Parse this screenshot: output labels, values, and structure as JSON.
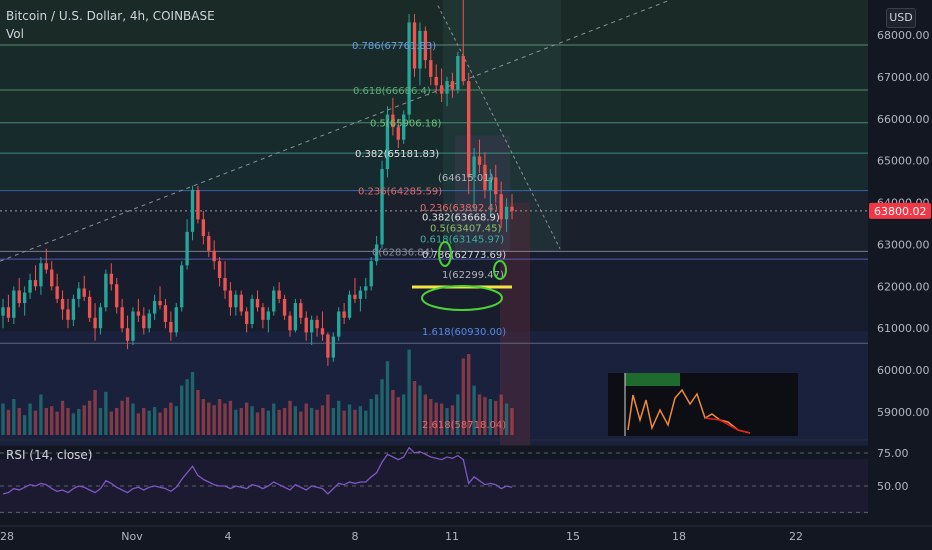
{
  "header": {
    "symbol": "Bitcoin / U.S. Dollar, 4h, COINBASE",
    "indicator": "Vol",
    "currency": "USD"
  },
  "rsi": {
    "label": "RSI (14, close)",
    "axis": [
      "75.00",
      "50.00"
    ]
  },
  "colors": {
    "bg": "#131722",
    "up": "#26a69a",
    "down": "#ef5350",
    "rsi": "#7e57c2",
    "price": "#f23645"
  },
  "chart_data": {
    "type": "candlestick",
    "title": "Bitcoin / U.S. Dollar, 4h, COINBASE",
    "ylim": [
      58200,
      69100
    ],
    "y_ticks": [
      68000,
      67000,
      66000,
      65000,
      64000,
      63000,
      62000,
      61000,
      60000,
      59000
    ],
    "y_tick_labels": [
      "68000.00",
      "67000.00",
      "66000.00",
      "65000.00",
      "64000.00",
      "63000.00",
      "62000.00",
      "61000.00",
      "60000.00",
      "59000.00"
    ],
    "x_tick_labels": [
      "28",
      "Nov",
      "4",
      "8",
      "11",
      "15",
      "18",
      "22"
    ],
    "last_price": 63800.02,
    "last_price_label": "63800.02",
    "fib_labels": [
      {
        "text": "0.786(67761.83)",
        "price": 67761.83
      },
      {
        "text": "0.618(66686.4)",
        "price": 66686.4
      },
      {
        "text": "0.5(65906.18)",
        "price": 65906.18
      },
      {
        "text": "0.382(65181.83)",
        "price": 65181.83
      },
      {
        "text": "0.236(64285.59)",
        "price": 64285.59
      },
      {
        "text": "0.236(63892.4)",
        "price": 63892.4
      },
      {
        "text": "0.382(63668.9)",
        "price": 63668.9
      },
      {
        "text": "0.5(63407.45)",
        "price": 63407.45
      },
      {
        "text": "0.618(63145.97)",
        "price": 63145.97
      },
      {
        "text": "0(62836.84)",
        "price": 62836.84
      },
      {
        "text": "0.786(62773.69)",
        "price": 62773.69
      },
      {
        "text": "1(62299.47)",
        "price": 62299.47
      },
      {
        "text": "1.618(60930.00)",
        "price": 60930.0
      },
      {
        "text": "2.618(58718.04)",
        "price": 58718.04
      },
      {
        "text": "(64615.01)",
        "price": 64615.01
      }
    ],
    "candles": [
      [
        61300,
        61700,
        61000,
        61500
      ],
      [
        61500,
        61800,
        61150,
        61250
      ],
      [
        61250,
        62000,
        61100,
        61900
      ],
      [
        61900,
        62200,
        61500,
        61600
      ],
      [
        61600,
        62000,
        61300,
        61850
      ],
      [
        61850,
        62300,
        61700,
        62150
      ],
      [
        62150,
        62500,
        61900,
        62000
      ],
      [
        62000,
        62700,
        61800,
        62550
      ],
      [
        62550,
        62900,
        62300,
        62400
      ],
      [
        62400,
        62600,
        61900,
        62000
      ],
      [
        62000,
        62300,
        61600,
        61700
      ],
      [
        61700,
        61900,
        61200,
        61450
      ],
      [
        61450,
        61700,
        61000,
        61200
      ],
      [
        61200,
        61800,
        61050,
        61700
      ],
      [
        61700,
        62100,
        61500,
        61950
      ],
      [
        61950,
        62250,
        61650,
        61750
      ],
      [
        61750,
        61900,
        61150,
        61250
      ],
      [
        61250,
        61600,
        60700,
        61000
      ],
      [
        61000,
        61600,
        60850,
        61500
      ],
      [
        61500,
        62400,
        61400,
        62300
      ],
      [
        62300,
        62550,
        61900,
        62050
      ],
      [
        62050,
        62200,
        61350,
        61500
      ],
      [
        61500,
        61700,
        60900,
        61000
      ],
      [
        61000,
        61300,
        60500,
        60700
      ],
      [
        60700,
        61500,
        60600,
        61400
      ],
      [
        61400,
        61700,
        61150,
        61300
      ],
      [
        61300,
        61500,
        60850,
        61000
      ],
      [
        61000,
        61450,
        60900,
        61350
      ],
      [
        61350,
        61800,
        61200,
        61650
      ],
      [
        61650,
        62000,
        61450,
        61550
      ],
      [
        61550,
        61700,
        61000,
        61150
      ],
      [
        61150,
        61400,
        60700,
        60900
      ],
      [
        60900,
        61600,
        60800,
        61500
      ],
      [
        61500,
        62600,
        61400,
        62500
      ],
      [
        62500,
        63600,
        62400,
        63300
      ],
      [
        63300,
        64400,
        63100,
        64300
      ],
      [
        64300,
        64400,
        63500,
        63600
      ],
      [
        63600,
        63800,
        63000,
        63200
      ],
      [
        63200,
        63300,
        62700,
        62850
      ],
      [
        62850,
        63100,
        62400,
        62600
      ],
      [
        62600,
        62700,
        62000,
        62200
      ],
      [
        62200,
        62600,
        61700,
        61900
      ],
      [
        61900,
        62100,
        61300,
        61500
      ],
      [
        61500,
        61900,
        61300,
        61800
      ],
      [
        61800,
        61900,
        61300,
        61400
      ],
      [
        61400,
        61500,
        60900,
        61100
      ],
      [
        61100,
        61800,
        61000,
        61700
      ],
      [
        61700,
        61900,
        61400,
        61500
      ],
      [
        61500,
        61600,
        61000,
        61200
      ],
      [
        61200,
        61500,
        60900,
        61400
      ],
      [
        61400,
        62000,
        61300,
        61900
      ],
      [
        61900,
        62100,
        61600,
        61700
      ],
      [
        61700,
        61800,
        61200,
        61300
      ],
      [
        61300,
        61400,
        60800,
        60950
      ],
      [
        60950,
        61700,
        60900,
        61600
      ],
      [
        61600,
        61700,
        61100,
        61250
      ],
      [
        61250,
        61400,
        60700,
        60900
      ],
      [
        60900,
        61300,
        60600,
        61200
      ],
      [
        61200,
        61300,
        60800,
        61000
      ],
      [
        61000,
        61400,
        60700,
        60850
      ],
      [
        60850,
        60900,
        60100,
        60300
      ],
      [
        60300,
        60900,
        60200,
        60800
      ],
      [
        60800,
        61500,
        60700,
        61400
      ],
      [
        61400,
        61600,
        61100,
        61250
      ],
      [
        61250,
        61900,
        61200,
        61800
      ],
      [
        61800,
        62200,
        61600,
        61700
      ],
      [
        61700,
        62000,
        61400,
        61900
      ],
      [
        61900,
        62200,
        61700,
        62000
      ],
      [
        62000,
        62700,
        61900,
        62600
      ],
      [
        62600,
        63200,
        62500,
        63000
      ],
      [
        63000,
        65000,
        62900,
        64800
      ],
      [
        64800,
        66300,
        64600,
        66100
      ],
      [
        66100,
        66500,
        65600,
        65800
      ],
      [
        65800,
        66000,
        65300,
        65500
      ],
      [
        65500,
        66200,
        65400,
        66100
      ],
      [
        66100,
        68500,
        65900,
        68300
      ],
      [
        68300,
        68500,
        67000,
        67200
      ],
      [
        67200,
        68300,
        66800,
        68100
      ],
      [
        68100,
        68200,
        67200,
        67400
      ],
      [
        67400,
        67800,
        66800,
        67000
      ],
      [
        67000,
        67300,
        66600,
        66800
      ],
      [
        66800,
        67200,
        66400,
        66600
      ],
      [
        66600,
        67000,
        66300,
        66900
      ],
      [
        66900,
        67100,
        66500,
        66700
      ],
      [
        66700,
        67600,
        66600,
        67500
      ],
      [
        67500,
        68900,
        66800,
        66900
      ],
      [
        66900,
        67100,
        64200,
        64600
      ],
      [
        64600,
        65300,
        63800,
        65100
      ],
      [
        65100,
        65500,
        64700,
        64900
      ],
      [
        64900,
        65200,
        64100,
        64300
      ],
      [
        64300,
        64800,
        63700,
        64600
      ],
      [
        64600,
        64900,
        64000,
        64200
      ],
      [
        64200,
        64500,
        63400,
        63600
      ],
      [
        63600,
        64100,
        63300,
        63900
      ],
      [
        63900,
        64200,
        63600,
        63800
      ]
    ],
    "volume": [
      0.35,
      0.28,
      0.4,
      0.3,
      0.22,
      0.35,
      0.27,
      0.45,
      0.3,
      0.32,
      0.26,
      0.38,
      0.3,
      0.24,
      0.29,
      0.33,
      0.38,
      0.5,
      0.3,
      0.48,
      0.26,
      0.3,
      0.38,
      0.42,
      0.35,
      0.24,
      0.3,
      0.27,
      0.31,
      0.25,
      0.3,
      0.36,
      0.32,
      0.55,
      0.62,
      0.7,
      0.5,
      0.4,
      0.36,
      0.33,
      0.4,
      0.35,
      0.38,
      0.28,
      0.3,
      0.36,
      0.32,
      0.25,
      0.3,
      0.27,
      0.35,
      0.28,
      0.3,
      0.38,
      0.32,
      0.26,
      0.35,
      0.3,
      0.28,
      0.33,
      0.45,
      0.3,
      0.38,
      0.27,
      0.34,
      0.28,
      0.32,
      0.27,
      0.4,
      0.45,
      0.62,
      0.82,
      0.5,
      0.42,
      0.45,
      0.95,
      0.6,
      0.55,
      0.45,
      0.4,
      0.36,
      0.35,
      0.3,
      0.33,
      0.45,
      0.85,
      0.9,
      0.55,
      0.45,
      0.42,
      0.4,
      0.38,
      0.45,
      0.35,
      0.3
    ],
    "rsi_values": [
      44,
      45,
      48,
      47,
      49,
      51,
      50,
      52,
      51,
      48,
      46,
      47,
      45,
      48,
      50,
      49,
      47,
      45,
      48,
      54,
      52,
      49,
      47,
      45,
      48,
      49,
      47,
      49,
      50,
      49,
      48,
      46,
      49,
      55,
      60,
      65,
      58,
      55,
      53,
      51,
      50,
      50,
      48,
      50,
      49,
      48,
      51,
      50,
      48,
      50,
      53,
      51,
      49,
      47,
      51,
      49,
      47,
      50,
      49,
      48,
      44,
      48,
      52,
      51,
      53,
      52,
      53,
      53,
      57,
      60,
      68,
      74,
      72,
      70,
      72,
      79,
      75,
      76,
      74,
      72,
      71,
      70,
      72,
      71,
      73,
      70,
      52,
      57,
      54,
      51,
      52,
      51,
      48,
      50,
      49
    ]
  }
}
